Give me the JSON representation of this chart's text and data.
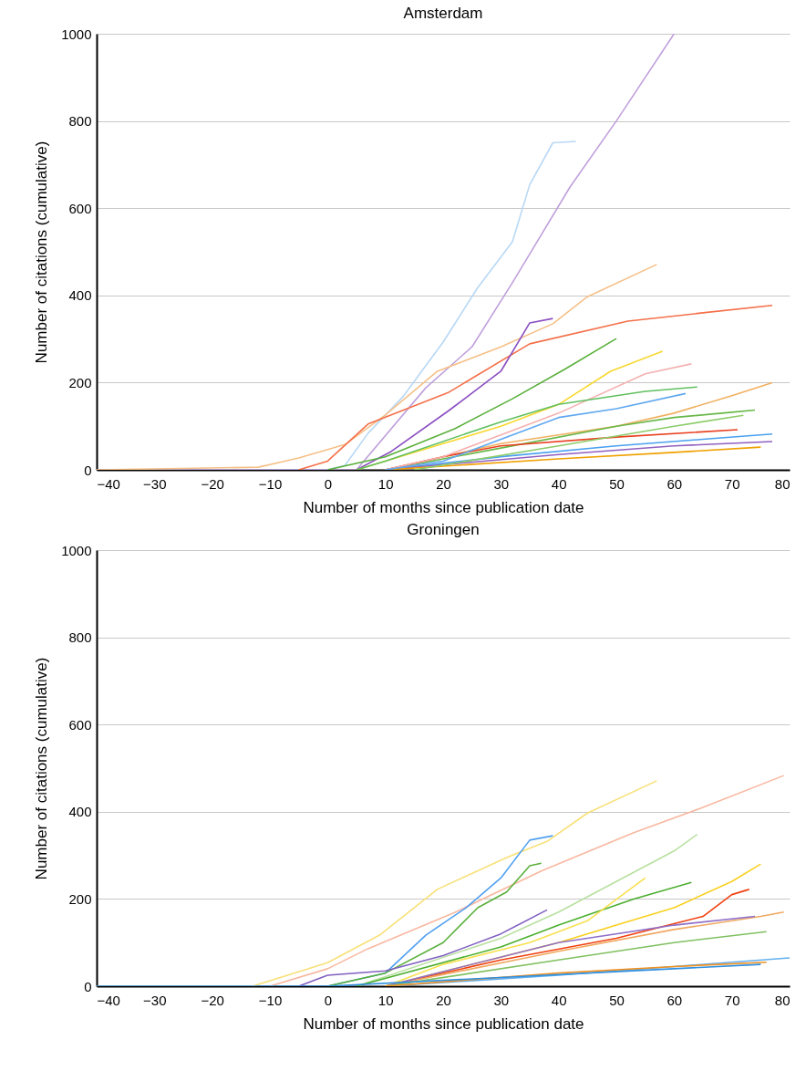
{
  "chart_data": [
    {
      "type": "line",
      "title": "Amsterdam",
      "xlabel": "Number of months since publication date",
      "ylabel": "Number of citations (cumulative)",
      "xlim": [
        -40,
        80
      ],
      "xticks": [
        -40,
        -30,
        -20,
        -10,
        0,
        10,
        20,
        30,
        40,
        50,
        60,
        70,
        80
      ],
      "ylim": [
        0,
        1000
      ],
      "yticks": [
        0,
        200,
        400,
        600,
        800,
        1000
      ],
      "grid": "y",
      "series": [
        {
          "color": "#b8d8f5",
          "x": [
            -40,
            0,
            3,
            7,
            13,
            20,
            26,
            32,
            35,
            39,
            43
          ],
          "values": [
            0,
            0,
            10,
            84,
            167,
            293,
            418,
            523,
            654,
            750,
            753
          ]
        },
        {
          "color": "#c0a0dc",
          "x": [
            -40,
            5,
            17,
            25,
            32,
            42,
            50,
            60
          ],
          "values": [
            0,
            0,
            188,
            282,
            429,
            649,
            800,
            1000
          ]
        },
        {
          "color": "#f5c088",
          "x": [
            -40,
            -12,
            -5,
            3,
            10,
            19,
            30,
            39,
            45,
            57
          ],
          "values": [
            0,
            6,
            27,
            58,
            126,
            226,
            282,
            335,
            397,
            471
          ]
        },
        {
          "color": "#f4704a",
          "x": [
            -5,
            0,
            7,
            21,
            35,
            52,
            65,
            77
          ],
          "values": [
            0,
            20,
            105,
            178,
            289,
            341,
            360,
            377
          ]
        },
        {
          "color": "#8b4fc0",
          "x": [
            5,
            11,
            21,
            30,
            35,
            39
          ],
          "values": [
            0,
            42,
            136,
            226,
            337,
            347
          ]
        },
        {
          "color": "#5ab03c",
          "x": [
            0,
            10,
            22,
            32,
            41,
            50
          ],
          "values": [
            0,
            30,
            94,
            163,
            230,
            301
          ]
        },
        {
          "color": "#f8d830",
          "x": [
            5,
            20,
            30,
            40,
            49,
            58
          ],
          "values": [
            0,
            60,
            100,
            150,
            226,
            272
          ]
        },
        {
          "color": "#f0b060",
          "x": [
            10,
            30,
            50,
            60,
            70,
            77
          ],
          "values": [
            0,
            60,
            100,
            130,
            170,
            200
          ]
        },
        {
          "color": "#68b848",
          "x": [
            10,
            30,
            50,
            60,
            70,
            74
          ],
          "values": [
            0,
            50,
            100,
            120,
            132,
            137
          ]
        },
        {
          "color": "#4aa0f0",
          "x": [
            10,
            30,
            50,
            65,
            77
          ],
          "values": [
            0,
            30,
            55,
            70,
            82
          ]
        },
        {
          "color": "#e84020",
          "x": [
            10,
            20,
            30,
            50,
            71
          ],
          "values": [
            0,
            30,
            55,
            75,
            92
          ]
        },
        {
          "color": "#9060c0",
          "x": [
            10,
            40,
            60,
            77
          ],
          "values": [
            0,
            35,
            55,
            65
          ]
        },
        {
          "color": "#f0a000",
          "x": [
            10,
            40,
            60,
            75
          ],
          "values": [
            0,
            25,
            40,
            52
          ]
        },
        {
          "color": "#8ccc6a",
          "x": [
            15,
            40,
            60,
            72
          ],
          "values": [
            0,
            55,
            100,
            125
          ]
        },
        {
          "color": "#f4b0b0",
          "x": [
            10,
            20,
            40,
            55,
            63
          ],
          "values": [
            0,
            30,
            130,
            220,
            243
          ]
        },
        {
          "color": "#60c060",
          "x": [
            5,
            10,
            30,
            40,
            55,
            64
          ],
          "values": [
            0,
            20,
            110,
            150,
            180,
            190
          ]
        },
        {
          "color": "#60a8f0",
          "x": [
            10,
            20,
            40,
            50,
            62
          ],
          "values": [
            0,
            20,
            120,
            140,
            175
          ]
        }
      ]
    },
    {
      "type": "line",
      "title": "Groningen",
      "xlabel": "Number of months since publication date",
      "ylabel": "Number of citations (cumulative)",
      "xlim": [
        -40,
        80
      ],
      "xticks": [
        -40,
        -30,
        -20,
        -10,
        0,
        10,
        20,
        30,
        40,
        50,
        60,
        70,
        80
      ],
      "ylim": [
        0,
        1000
      ],
      "yticks": [
        0,
        200,
        400,
        600,
        800,
        1000
      ],
      "grid": "y",
      "series": [
        {
          "color": "#f8e078",
          "x": [
            -40,
            -13,
            0,
            9,
            19,
            31,
            38,
            45,
            57
          ],
          "values": [
            0,
            0,
            54,
            117,
            222,
            295,
            332,
            397,
            471
          ]
        },
        {
          "color": "#f8b8a0",
          "x": [
            -10,
            0,
            7,
            22,
            37,
            53,
            65,
            79
          ],
          "values": [
            0,
            40,
            86,
            169,
            264,
            352,
            410,
            483
          ]
        },
        {
          "color": "#50a0f0",
          "x": [
            0,
            10,
            17,
            24,
            30,
            35,
            39
          ],
          "values": [
            0,
            30,
            117,
            180,
            248,
            335,
            345
          ]
        },
        {
          "color": "#5ab03c",
          "x": [
            0,
            10,
            20,
            26,
            31,
            35,
            37
          ],
          "values": [
            0,
            30,
            100,
            180,
            216,
            276,
            282
          ]
        },
        {
          "color": "#b8e0a0",
          "x": [
            5,
            30,
            40,
            50,
            60,
            64
          ],
          "values": [
            0,
            110,
            170,
            240,
            310,
            348
          ]
        },
        {
          "color": "#4caf30",
          "x": [
            5,
            30,
            40,
            53,
            63
          ],
          "values": [
            0,
            90,
            140,
            200,
            238
          ]
        },
        {
          "color": "#f8d020",
          "x": [
            10,
            40,
            50,
            60,
            70,
            75
          ],
          "values": [
            0,
            100,
            140,
            180,
            240,
            280
          ]
        },
        {
          "color": "#f04010",
          "x": [
            10,
            30,
            50,
            65,
            70,
            73
          ],
          "values": [
            0,
            60,
            110,
            160,
            210,
            222
          ]
        },
        {
          "color": "#8060c0",
          "x": [
            -5,
            0,
            10,
            20,
            30,
            38
          ],
          "values": [
            0,
            25,
            35,
            70,
            120,
            175
          ]
        },
        {
          "color": "#f8e050",
          "x": [
            10,
            20,
            35,
            45,
            55
          ],
          "values": [
            0,
            50,
            100,
            150,
            248
          ]
        },
        {
          "color": "#f0a860",
          "x": [
            10,
            40,
            60,
            75,
            79
          ],
          "values": [
            0,
            80,
            130,
            160,
            170
          ]
        },
        {
          "color": "#9070c8",
          "x": [
            10,
            40,
            60,
            74
          ],
          "values": [
            0,
            100,
            140,
            160
          ]
        },
        {
          "color": "#80c060",
          "x": [
            10,
            40,
            60,
            76
          ],
          "values": [
            0,
            60,
            100,
            125
          ]
        },
        {
          "color": "#60b0f0",
          "x": [
            10,
            40,
            60,
            80
          ],
          "values": [
            0,
            25,
            45,
            65
          ]
        },
        {
          "color": "#f09020",
          "x": [
            10,
            40,
            60,
            76
          ],
          "values": [
            0,
            30,
            45,
            55
          ]
        },
        {
          "color": "#3090e0",
          "x": [
            -40,
            0,
            30,
            60,
            75
          ],
          "values": [
            0,
            0,
            20,
            40,
            50
          ]
        }
      ]
    }
  ]
}
